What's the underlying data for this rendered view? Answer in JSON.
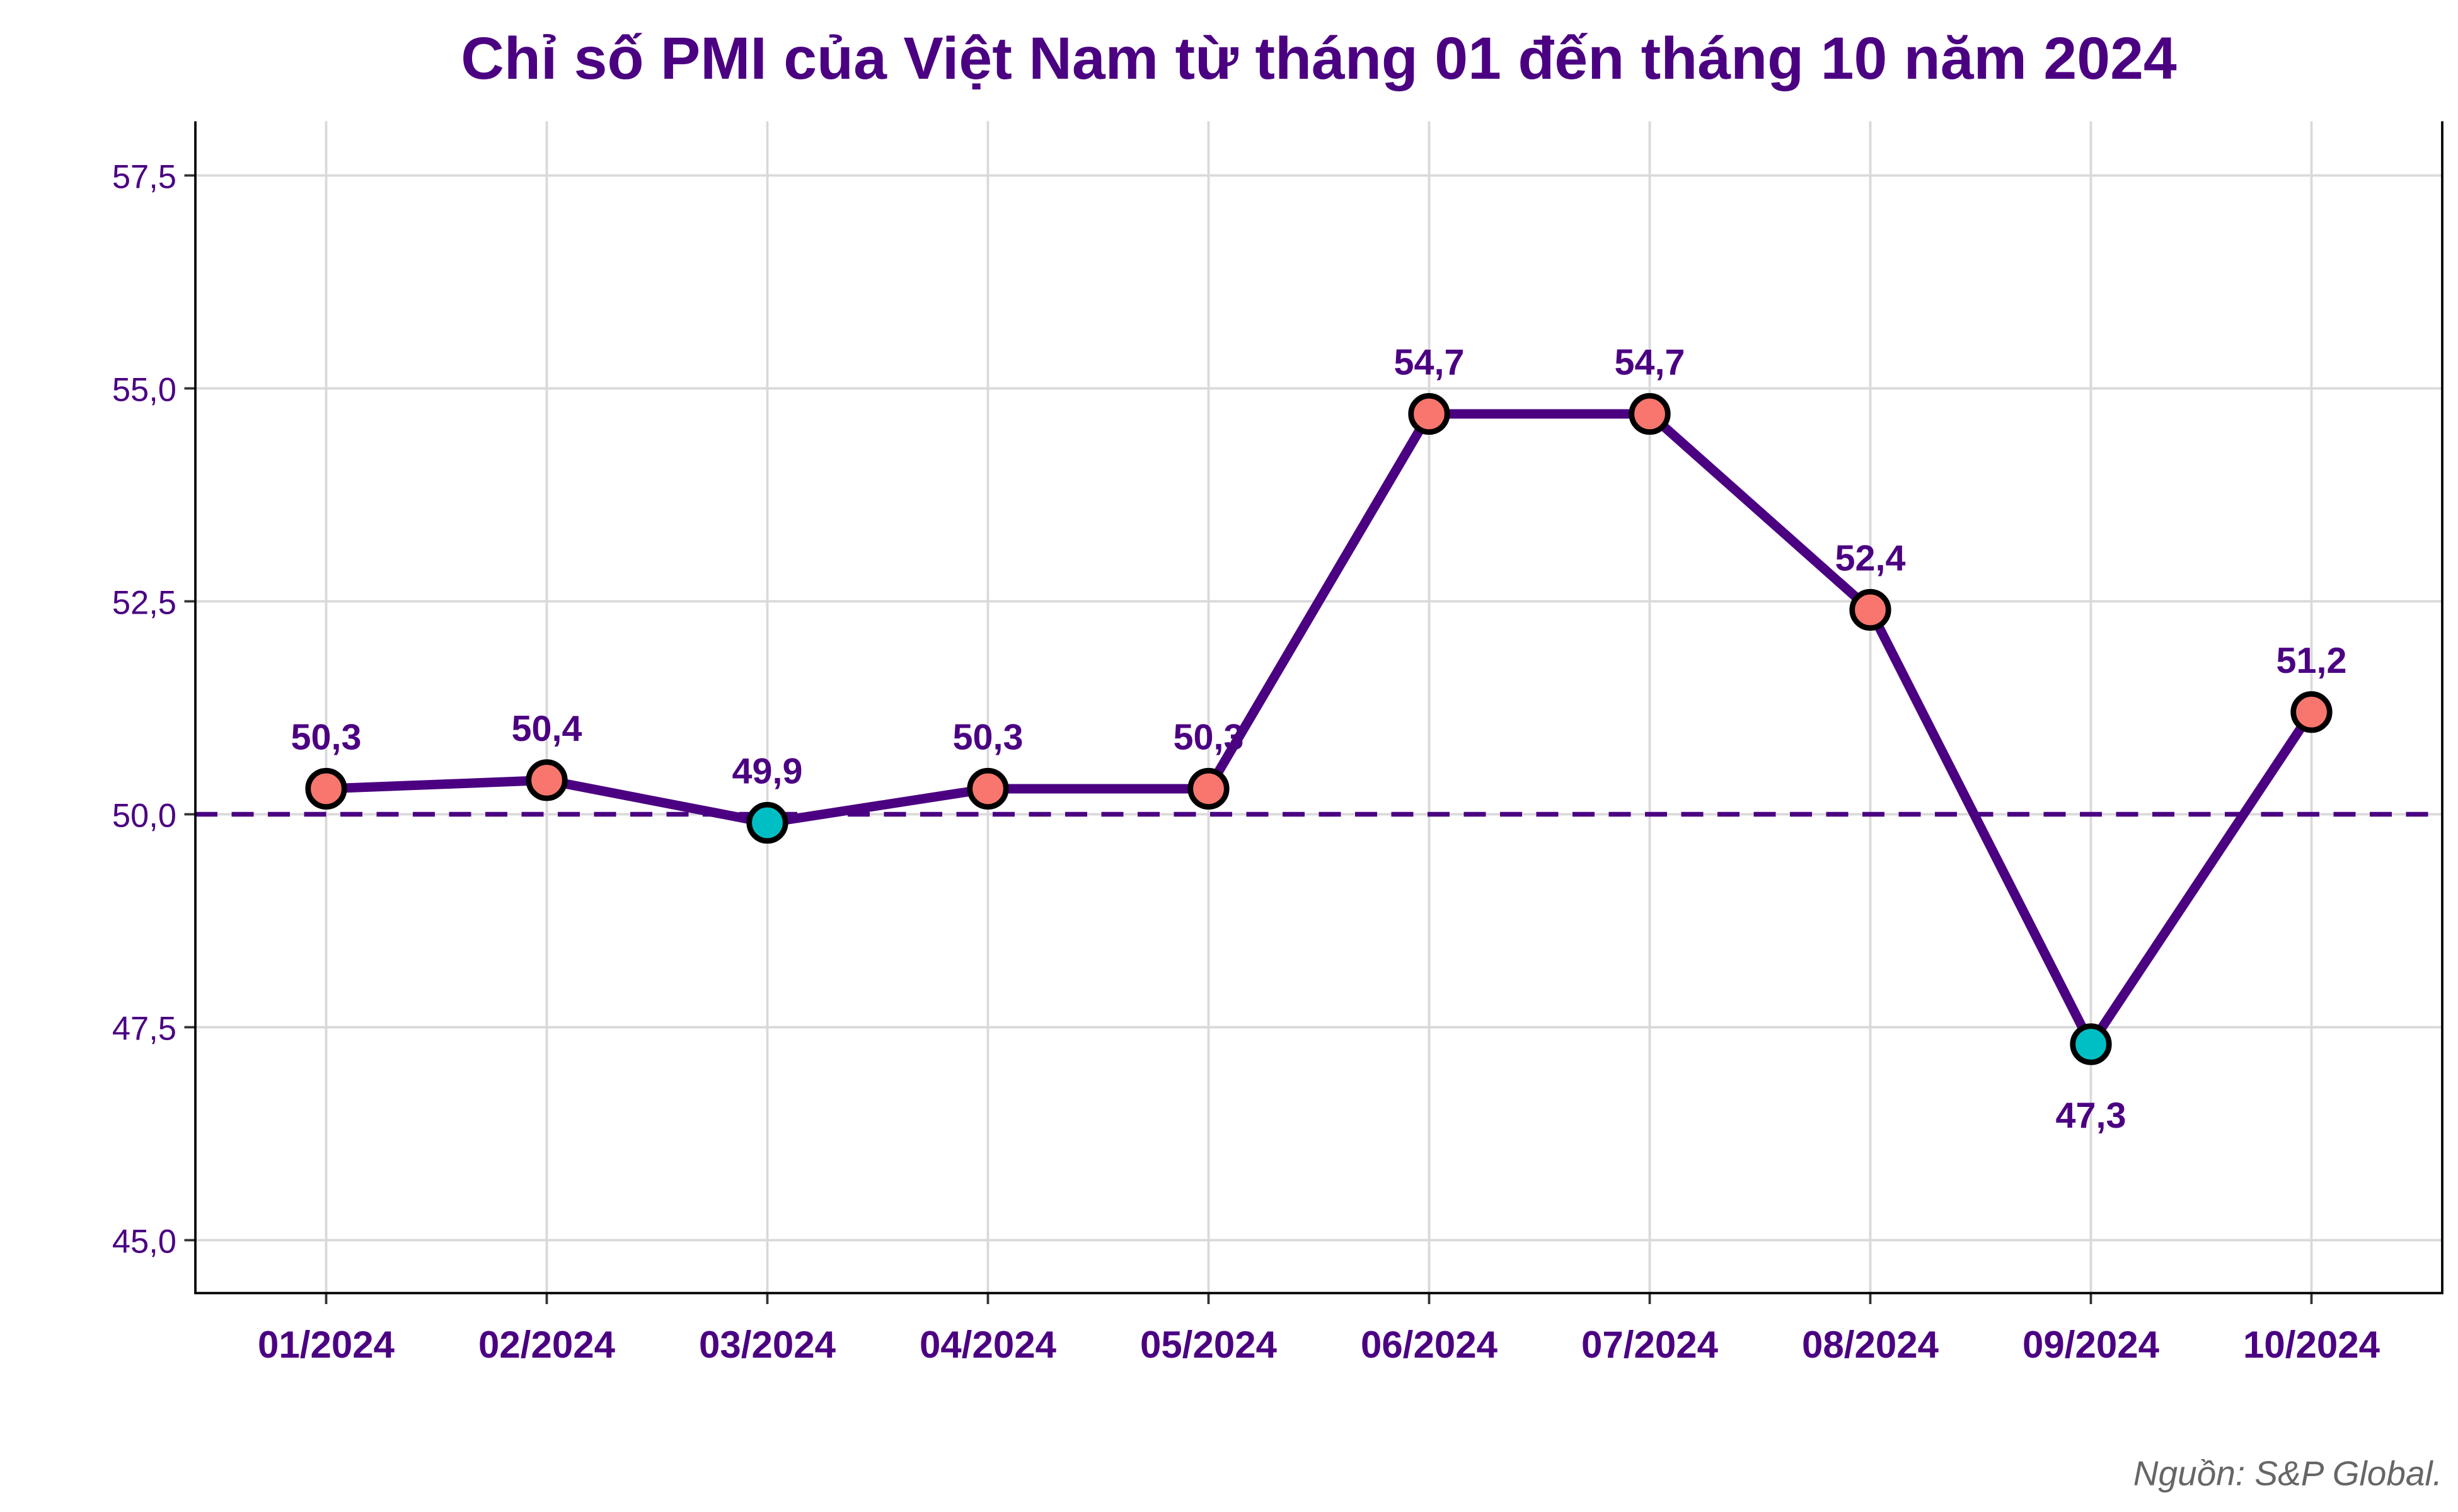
{
  "chart_data": {
    "type": "line",
    "title": "Chỉ số PMI của Việt Nam từ tháng 01 đến tháng 10 năm 2024",
    "xlabel": "",
    "ylabel": "",
    "categories": [
      "01/2024",
      "02/2024",
      "03/2024",
      "04/2024",
      "05/2024",
      "06/2024",
      "07/2024",
      "08/2024",
      "09/2024",
      "10/2024"
    ],
    "values": [
      50.3,
      50.4,
      49.9,
      50.3,
      50.3,
      54.7,
      54.7,
      52.4,
      47.3,
      51.2
    ],
    "data_labels": [
      "50,3",
      "50,4",
      "49,9",
      "50,3",
      "50,3",
      "54,7",
      "54,7",
      "52,4",
      "47,3",
      "51,2"
    ],
    "ylim": [
      44.5,
      58.15
    ],
    "yticks": [
      45.0,
      47.5,
      50.0,
      52.5,
      55.0,
      57.5
    ],
    "ytick_labels": [
      "45,0",
      "47,5",
      "50,0",
      "52,5",
      "55,0",
      "57,5"
    ],
    "reference_line": 50.0,
    "grid": true,
    "colors": {
      "text": "#4B0082",
      "line": "#4B0082",
      "above": "#F8766D",
      "below": "#00BFC4",
      "grid": "#D9D9D9"
    }
  },
  "source": "Nguồn: S&P Global."
}
